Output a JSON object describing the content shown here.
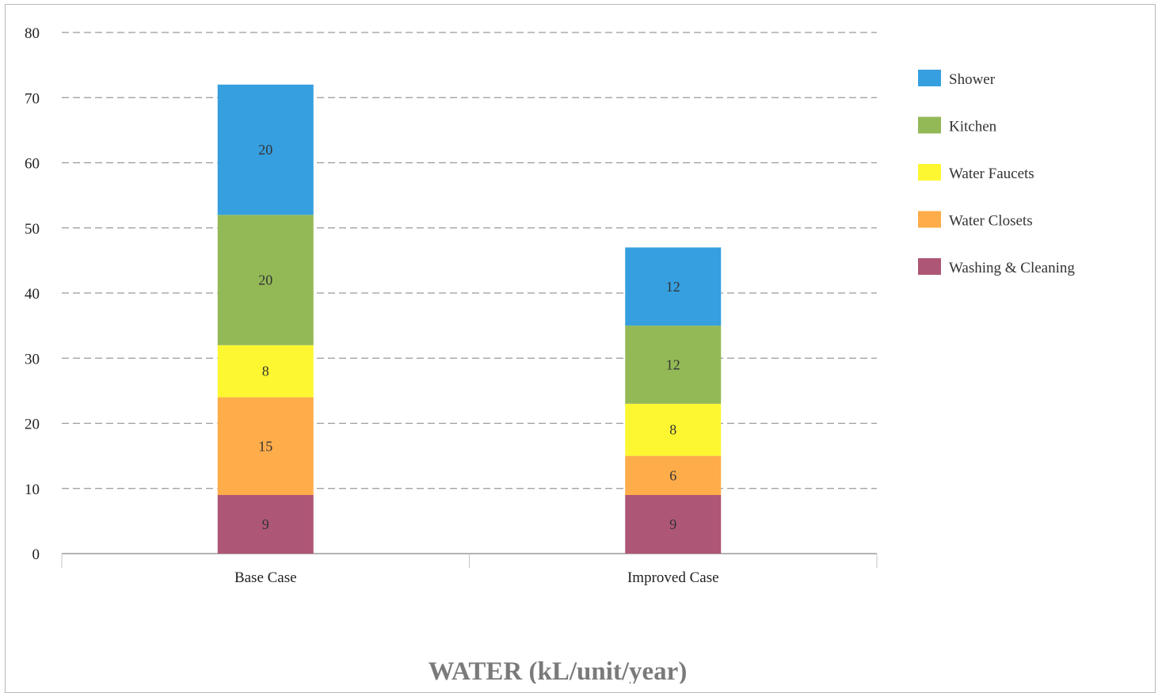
{
  "chart_data": {
    "type": "bar",
    "stacked": true,
    "title": "WATER (kL/unit/year)",
    "xlabel": "",
    "ylabel": "",
    "categories": [
      "Base Case",
      "Improved Case"
    ],
    "ylim": [
      0,
      80
    ],
    "yticks": [
      0,
      10,
      20,
      30,
      40,
      50,
      60,
      70,
      80
    ],
    "grid": true,
    "legend_position": "right",
    "series": [
      {
        "name": "Washing & Cleaning",
        "values": [
          9,
          9
        ],
        "color": "#ae5675"
      },
      {
        "name": "Water Closets",
        "values": [
          15,
          6
        ],
        "color": "#ffac4a"
      },
      {
        "name": "Water Faucets",
        "values": [
          8,
          8
        ],
        "color": "#fcf731"
      },
      {
        "name": "Kitchen",
        "values": [
          20,
          12
        ],
        "color": "#93b957"
      },
      {
        "name": "Shower",
        "values": [
          20,
          12
        ],
        "color": "#369fdf"
      }
    ],
    "legend_order": [
      "Shower",
      "Kitchen",
      "Water Faucets",
      "Water Closets",
      "Washing & Cleaning"
    ],
    "data_labels": true
  }
}
